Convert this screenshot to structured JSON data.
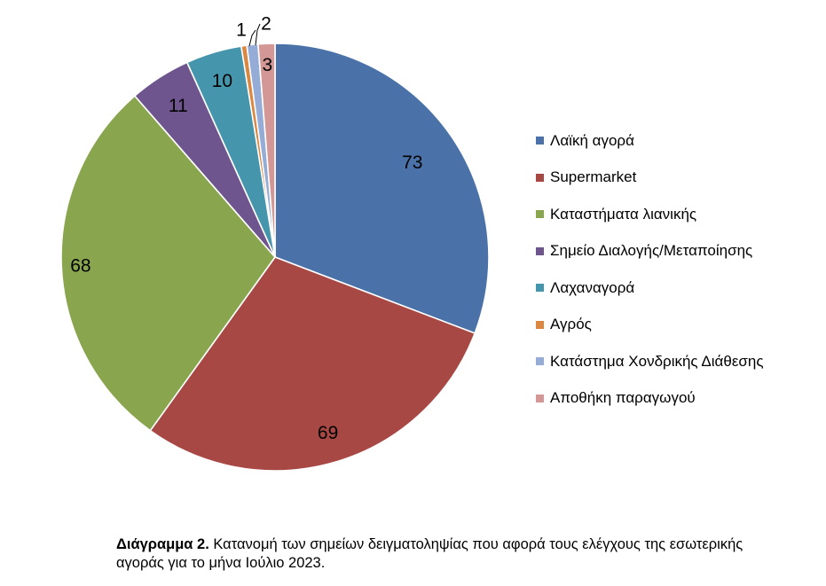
{
  "chart_data": {
    "type": "pie",
    "title": "",
    "categories": [
      "Λαϊκή αγορά",
      "Supermarket",
      "Καταστήματα λιανικής",
      "Σημείο Διαλογής/Μεταποίησης",
      "Λαχαναγορά",
      "Αγρός",
      "Κατάστημα Χονδρικής Διάθεσης",
      "Αποθήκη παραγωγού"
    ],
    "values": [
      73,
      69,
      68,
      11,
      10,
      1,
      2,
      3
    ],
    "colors": [
      "#4A72A8",
      "#A84845",
      "#89A64E",
      "#6F558E",
      "#4595AC",
      "#DB8641",
      "#95ACD6",
      "#D39796"
    ],
    "start_angle": "12 o'clock",
    "direction": "clockwise",
    "data_labels": [
      "73",
      "69",
      "68",
      "11",
      "10",
      "1",
      "2",
      "3"
    ],
    "legend_position": "right"
  },
  "caption": {
    "label": "Διάγραμμα 2.",
    "text": " Κατανομή των σημείων δειγματοληψίας που αφορά τους ελέγχους της εσωτερικής αγοράς για το μήνα Ιούλιο 2023."
  }
}
